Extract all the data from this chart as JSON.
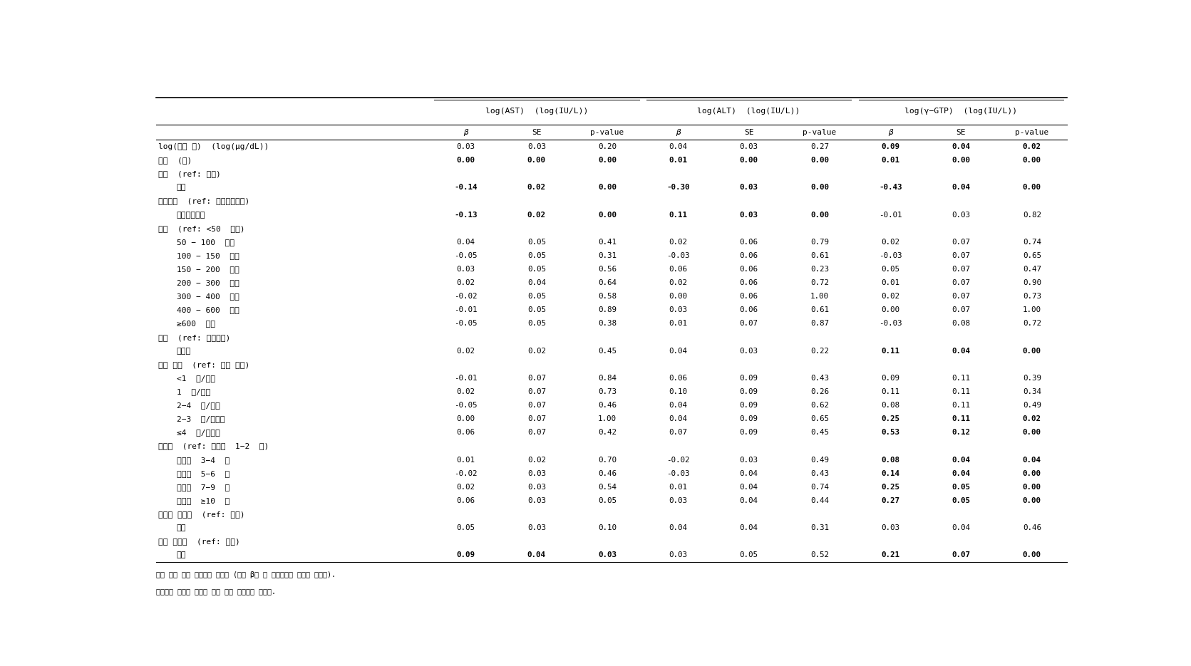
{
  "col_headers_top": [
    "log(AST)  (log(IU/L))",
    "log(ALT)  (log(IU/L))",
    "log(γ−GTP)  (log(IU/L))"
  ],
  "col_headers_sub": [
    "β",
    "SE",
    "p-value",
    "β",
    "SE",
    "p-value",
    "β",
    "SE",
    "p-value"
  ],
  "row_labels": [
    "log(허중 납)  (log(μg/dL))",
    "연령  (년)",
    "성별  (ref: 남성)",
    "  여성",
    "조사기간  (ref: 기반조사기간)",
    "  추적조사기간",
    "소득  (ref: <50  만원)",
    "  50 − 100  만원",
    "  100 − 150  만원",
    "  150 − 200  만원",
    "  200 − 300  만원",
    "  300 − 400  만원",
    "  400 − 600  만원",
    "  ≥600  만원",
    "흠연  (ref: 비흠연자)",
    "  흠연자",
    "음주 빈도  (ref: 음주 안함)",
    "  <1  회/한달",
    "  1  회/한달",
    "  2−4  회/한달",
    "  2−3  회/일주일",
    "  ≤4  회/일주일",
    "음주량  (ref: 한번에  1−2  잔)",
    "  한번에  3−4  잔",
    "  한번에  5−6  잔",
    "  한번에  7−9  잔",
    "  한번에  ≥10  잔",
    "고혁압 과거력  (ref: 없음)",
    "  있음",
    "당뇨 과거력  (ref: 없음)",
    "  있음"
  ],
  "data": [
    [
      0.03,
      0.03,
      0.2,
      0.04,
      0.03,
      0.27,
      0.09,
      0.04,
      0.02
    ],
    [
      0.0,
      0.0,
      0.0,
      0.01,
      0.0,
      0.0,
      0.01,
      0.0,
      0.0
    ],
    [
      null,
      null,
      null,
      null,
      null,
      null,
      null,
      null,
      null
    ],
    [
      -0.14,
      0.02,
      0.0,
      -0.3,
      0.03,
      0.0,
      -0.43,
      0.04,
      0.0
    ],
    [
      null,
      null,
      null,
      null,
      null,
      null,
      null,
      null,
      null
    ],
    [
      -0.13,
      0.02,
      0.0,
      0.11,
      0.03,
      0.0,
      -0.01,
      0.03,
      0.82
    ],
    [
      null,
      null,
      null,
      null,
      null,
      null,
      null,
      null,
      null
    ],
    [
      0.04,
      0.05,
      0.41,
      0.02,
      0.06,
      0.79,
      0.02,
      0.07,
      0.74
    ],
    [
      -0.05,
      0.05,
      0.31,
      -0.03,
      0.06,
      0.61,
      -0.03,
      0.07,
      0.65
    ],
    [
      0.03,
      0.05,
      0.56,
      0.06,
      0.06,
      0.23,
      0.05,
      0.07,
      0.47
    ],
    [
      0.02,
      0.04,
      0.64,
      0.02,
      0.06,
      0.72,
      0.01,
      0.07,
      0.9
    ],
    [
      -0.02,
      0.05,
      0.58,
      0.0,
      0.06,
      1.0,
      0.02,
      0.07,
      0.73
    ],
    [
      -0.01,
      0.05,
      0.89,
      0.03,
      0.06,
      0.61,
      0.0,
      0.07,
      1.0
    ],
    [
      -0.05,
      0.05,
      0.38,
      0.01,
      0.07,
      0.87,
      -0.03,
      0.08,
      0.72
    ],
    [
      null,
      null,
      null,
      null,
      null,
      null,
      null,
      null,
      null
    ],
    [
      0.02,
      0.02,
      0.45,
      0.04,
      0.03,
      0.22,
      0.11,
      0.04,
      0.0
    ],
    [
      null,
      null,
      null,
      null,
      null,
      null,
      null,
      null,
      null
    ],
    [
      -0.01,
      0.07,
      0.84,
      0.06,
      0.09,
      0.43,
      0.09,
      0.11,
      0.39
    ],
    [
      0.02,
      0.07,
      0.73,
      0.1,
      0.09,
      0.26,
      0.11,
      0.11,
      0.34
    ],
    [
      -0.05,
      0.07,
      0.46,
      0.04,
      0.09,
      0.62,
      0.08,
      0.11,
      0.49
    ],
    [
      0.0,
      0.07,
      1.0,
      0.04,
      0.09,
      0.65,
      0.25,
      0.11,
      0.02
    ],
    [
      0.06,
      0.07,
      0.42,
      0.07,
      0.09,
      0.45,
      0.53,
      0.12,
      0.0
    ],
    [
      null,
      null,
      null,
      null,
      null,
      null,
      null,
      null,
      null
    ],
    [
      0.01,
      0.02,
      0.7,
      -0.02,
      0.03,
      0.49,
      0.08,
      0.04,
      0.04
    ],
    [
      -0.02,
      0.03,
      0.46,
      -0.03,
      0.04,
      0.43,
      0.14,
      0.04,
      0.0
    ],
    [
      0.02,
      0.03,
      0.54,
      0.01,
      0.04,
      0.74,
      0.25,
      0.05,
      0.0
    ],
    [
      0.06,
      0.03,
      0.05,
      0.03,
      0.04,
      0.44,
      0.27,
      0.05,
      0.0
    ],
    [
      null,
      null,
      null,
      null,
      null,
      null,
      null,
      null,
      null
    ],
    [
      0.05,
      0.03,
      0.1,
      0.04,
      0.04,
      0.31,
      0.03,
      0.04,
      0.46
    ],
    [
      null,
      null,
      null,
      null,
      null,
      null,
      null,
      null,
      null
    ],
    [
      0.09,
      0.04,
      0.03,
      0.03,
      0.05,
      0.52,
      0.21,
      0.07,
      0.0
    ]
  ],
  "group_header_texts": [
    "log(AST)  (log(IU/L))",
    "log(ALT)  (log(IU/L))",
    "log(γ−GTP)  (log(IU/L))"
  ],
  "footnote1": "다중 선형 혼합 모형으로 분석함 (효과 β는 각 예측변수가 보정된 수치임).",
  "footnote2": "중금속과 간기능 수치는 자연 로그 변환하여 분석함.",
  "bg_color": "#ffffff",
  "text_color": "#000000"
}
